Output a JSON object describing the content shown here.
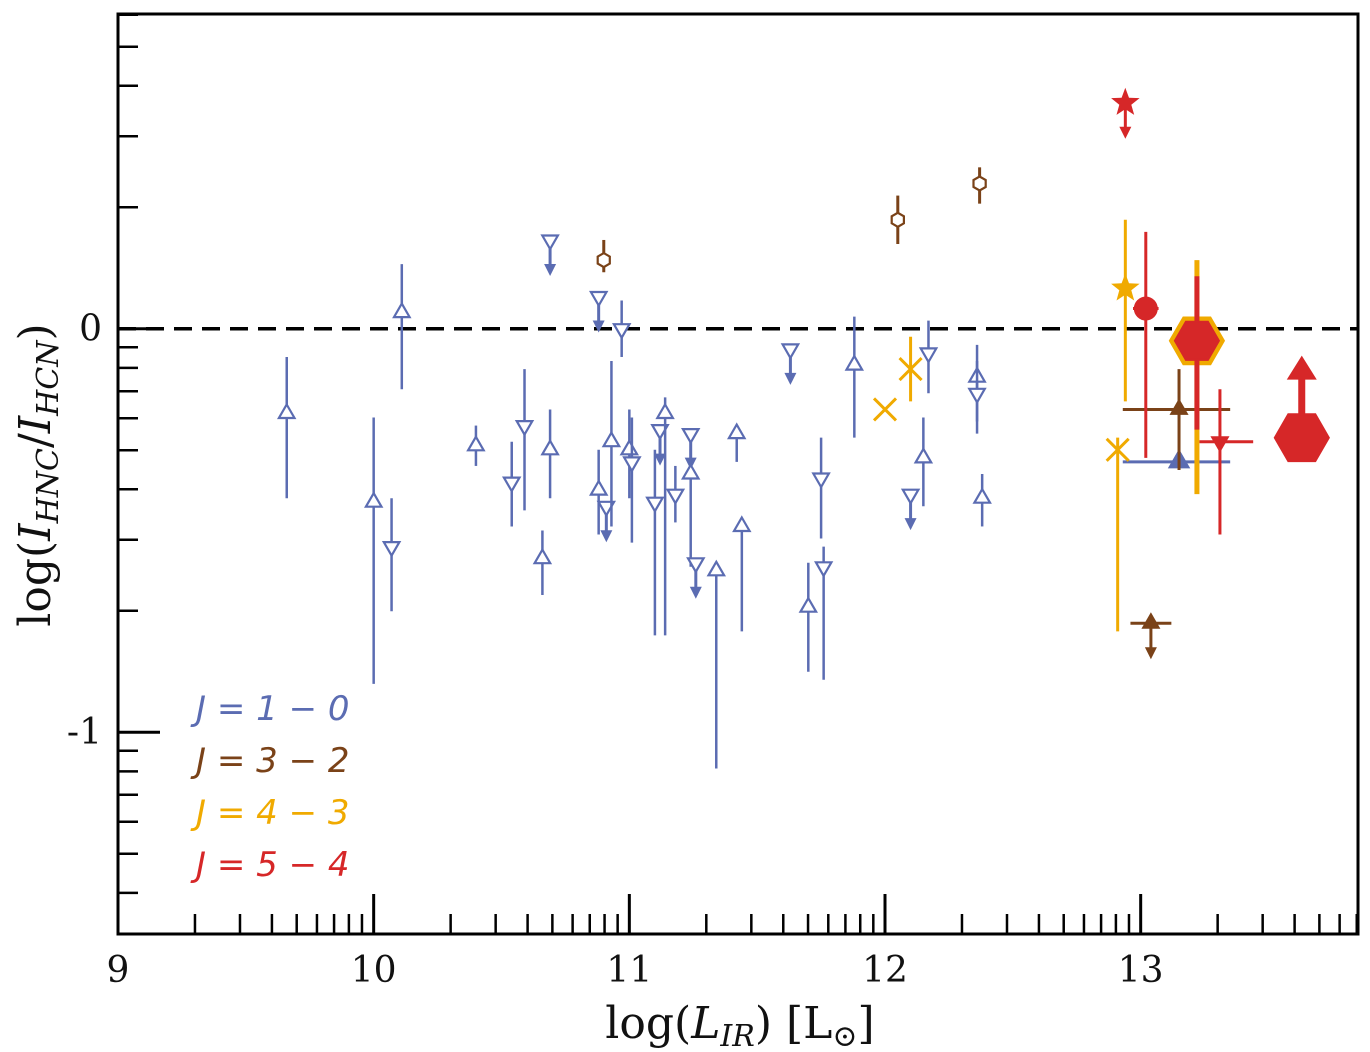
{
  "chart_data": {
    "type": "scatter",
    "xlabel_main": "log(",
    "xlabel_var": "L",
    "xlabel_sub": "IR",
    "xlabel_unit": ") [L",
    "xlabel_sun": "⊙",
    "xlabel_close": "]",
    "ylabel_main": "log(",
    "ylabel_num": "I",
    "ylabel_num_sub": "HNC",
    "ylabel_slash": "/",
    "ylabel_den": "I",
    "ylabel_den_sub": "HCN",
    "ylabel_close": ")",
    "xlim": [
      9,
      13.85
    ],
    "ylim": [
      -1.5,
      0.78
    ],
    "x_ticks": [
      {
        "value": 9,
        "label": "9"
      },
      {
        "value": 10,
        "label": "10"
      },
      {
        "value": 11,
        "label": "11"
      },
      {
        "value": 12,
        "label": "12"
      },
      {
        "value": 13,
        "label": "13"
      }
    ],
    "y_ticks": [
      {
        "value": 0,
        "label": "0"
      },
      {
        "value": -1,
        "label": "-1"
      }
    ],
    "reference_line_y": 0,
    "colors": {
      "J10": "#5b6cb2",
      "J32": "#7a4218",
      "J43": "#f0aa00",
      "J54": "#d62728",
      "axis": "#000000"
    },
    "legend": [
      {
        "key": "J10",
        "label": "J = 1 − 0"
      },
      {
        "key": "J32",
        "label": "J = 3 − 2"
      },
      {
        "key": "J43",
        "label": "J = 4 − 3"
      },
      {
        "key": "J54",
        "label": "J = 5 − 4"
      }
    ],
    "series": [
      {
        "name": "J = 1 − 0",
        "key": "J10",
        "points": [
          {
            "x": 9.66,
            "y": -0.21,
            "lo": -0.42,
            "hi": -0.07,
            "m": "tri-up"
          },
          {
            "x": 10.0,
            "y": -0.43,
            "lo": -0.88,
            "hi": -0.22,
            "m": "tri-up"
          },
          {
            "x": 10.07,
            "y": -0.54,
            "lo": -0.7,
            "hi": -0.42,
            "m": "tri-down"
          },
          {
            "x": 10.11,
            "y": 0.04,
            "lo": -0.15,
            "hi": 0.16,
            "m": "tri-up"
          },
          {
            "x": 10.4,
            "y": -0.29,
            "lo": -0.34,
            "hi": -0.24,
            "m": "tri-up"
          },
          {
            "x": 10.54,
            "y": -0.38,
            "lo": -0.49,
            "hi": -0.28,
            "m": "tri-down"
          },
          {
            "x": 10.59,
            "y": -0.24,
            "lo": -0.45,
            "hi": -0.1,
            "m": "tri-down"
          },
          {
            "x": 10.66,
            "y": -0.57,
            "lo": -0.66,
            "hi": -0.5,
            "m": "tri-up"
          },
          {
            "x": 10.69,
            "y": -0.3,
            "lo": -0.42,
            "hi": -0.2,
            "m": "tri-up"
          },
          {
            "x": 10.69,
            "y": 0.22,
            "m": "tri-down",
            "ul": true
          },
          {
            "x": 10.88,
            "y": -0.4,
            "lo": -0.51,
            "hi": -0.3,
            "m": "tri-up"
          },
          {
            "x": 10.88,
            "y": 0.08,
            "m": "tri-down",
            "ul": true
          },
          {
            "x": 10.91,
            "y": -0.44,
            "m": "tri-down",
            "ul": true
          },
          {
            "x": 10.93,
            "y": -0.28,
            "lo": -0.49,
            "hi": -0.08,
            "m": "tri-up"
          },
          {
            "x": 10.97,
            "y": 0.0,
            "lo": -0.07,
            "hi": 0.07,
            "m": "tri-down"
          },
          {
            "x": 11.0,
            "y": -0.3,
            "lo": -0.42,
            "hi": -0.2,
            "m": "tri-up"
          },
          {
            "x": 11.01,
            "y": -0.33,
            "lo": -0.53,
            "hi": -0.22,
            "m": "tri-down"
          },
          {
            "x": 11.1,
            "y": -0.43,
            "lo": -0.76,
            "hi": -0.3,
            "m": "tri-down"
          },
          {
            "x": 11.12,
            "y": -0.25,
            "m": "tri-down",
            "ul": true
          },
          {
            "x": 11.14,
            "y": -0.21,
            "lo": -0.76,
            "hi": -0.17,
            "m": "tri-up"
          },
          {
            "x": 11.18,
            "y": -0.41,
            "lo": -0.48,
            "hi": -0.34,
            "m": "tri-down"
          },
          {
            "x": 11.24,
            "y": -0.26,
            "m": "tri-down",
            "ul": true
          },
          {
            "x": 11.24,
            "y": -0.36,
            "lo": -0.59,
            "hi": -0.3,
            "m": "tri-up"
          },
          {
            "x": 11.26,
            "y": -0.58,
            "m": "tri-down",
            "ul": true
          },
          {
            "x": 11.34,
            "y": -0.6,
            "lo": -1.09,
            "hi": -0.6,
            "m": "tri-up"
          },
          {
            "x": 11.42,
            "y": -0.26,
            "lo": -0.33,
            "hi": -0.24,
            "m": "tri-up"
          },
          {
            "x": 11.44,
            "y": -0.49,
            "lo": -0.75,
            "hi": -0.47,
            "m": "tri-up"
          },
          {
            "x": 11.63,
            "y": -0.05,
            "m": "tri-down",
            "ul": true
          },
          {
            "x": 11.7,
            "y": -0.69,
            "lo": -0.85,
            "hi": -0.58,
            "m": "tri-up"
          },
          {
            "x": 11.75,
            "y": -0.37,
            "lo": -0.52,
            "hi": -0.27,
            "m": "tri-down"
          },
          {
            "x": 11.76,
            "y": -0.59,
            "lo": -0.87,
            "hi": -0.54,
            "m": "tri-down"
          },
          {
            "x": 11.88,
            "y": -0.09,
            "lo": -0.27,
            "hi": 0.03,
            "m": "tri-up"
          },
          {
            "x": 12.1,
            "y": -0.41,
            "m": "tri-down",
            "ul": true
          },
          {
            "x": 12.15,
            "y": -0.32,
            "lo": -0.44,
            "hi": -0.22,
            "m": "tri-up"
          },
          {
            "x": 12.17,
            "y": -0.06,
            "lo": -0.16,
            "hi": 0.02,
            "m": "tri-down"
          },
          {
            "x": 12.36,
            "y": -0.12,
            "lo": -0.23,
            "hi": -0.04,
            "m": "tri-up"
          },
          {
            "x": 12.36,
            "y": -0.16,
            "lo": -0.26,
            "hi": -0.08,
            "m": "tri-down"
          },
          {
            "x": 12.38,
            "y": -0.42,
            "lo": -0.49,
            "hi": -0.36,
            "m": "tri-up"
          },
          {
            "x": 13.15,
            "y": -0.33,
            "lo": -0.44,
            "xlo": 12.93,
            "xhi": 13.35,
            "m": "tri-up-filled",
            "big": true
          }
        ]
      },
      {
        "name": "J = 3 − 2",
        "key": "J32",
        "points": [
          {
            "x": 10.9,
            "y": 0.17,
            "lo": 0.14,
            "hi": 0.22,
            "m": "hex-open"
          },
          {
            "x": 12.05,
            "y": 0.27,
            "lo": 0.21,
            "hi": 0.33,
            "m": "hex-open"
          },
          {
            "x": 12.37,
            "y": 0.36,
            "lo": 0.31,
            "hi": 0.4,
            "m": "hex-open"
          },
          {
            "x": 13.15,
            "y": -0.2,
            "lo": -0.35,
            "hi": -0.1,
            "xlo": 12.93,
            "xhi": 13.35,
            "m": "tri-up-filled"
          },
          {
            "x": 13.04,
            "y": -0.73,
            "xlo": 12.96,
            "xhi": 13.12,
            "m": "tri-up-filled",
            "ul": true
          }
        ]
      },
      {
        "name": "J = 4 − 3",
        "key": "J43",
        "points": [
          {
            "x": 12.0,
            "y": -0.2,
            "m": "x"
          },
          {
            "x": 12.1,
            "y": -0.1,
            "lo": -0.18,
            "hi": -0.02,
            "m": "x"
          },
          {
            "x": 12.91,
            "y": -0.3,
            "lo": -0.75,
            "hi": -0.27,
            "m": "x"
          },
          {
            "x": 12.94,
            "y": 0.1,
            "lo": -0.18,
            "hi": 0.27,
            "m": "star"
          },
          {
            "x": 13.22,
            "y": -0.03,
            "lo": -0.41,
            "hi": 0.17,
            "m": "hex-filled",
            "big": true
          }
        ]
      },
      {
        "name": "J = 5 − 4",
        "key": "J54",
        "points": [
          {
            "x": 12.94,
            "y": 0.56,
            "m": "star",
            "ul": true
          },
          {
            "x": 13.02,
            "y": 0.05,
            "lo": -0.32,
            "hi": 0.24,
            "xlo": 12.97,
            "xhi": 13.07,
            "m": "circle"
          },
          {
            "x": 13.22,
            "y": -0.03,
            "lo": -0.25,
            "hi": 0.13,
            "m": "hex-filled",
            "big": true
          },
          {
            "x": 13.31,
            "y": -0.28,
            "lo": -0.51,
            "hi": -0.15,
            "xlo": 13.23,
            "xhi": 13.44,
            "m": "tri-down-filled"
          },
          {
            "x": 13.63,
            "y": -0.27,
            "m": "hex-filled",
            "ll": true,
            "big": true
          }
        ]
      }
    ]
  }
}
